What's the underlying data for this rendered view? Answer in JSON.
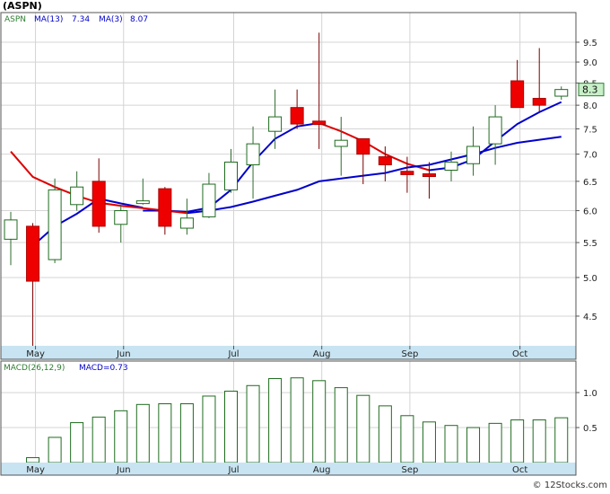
{
  "chart_data": [
    {
      "type": "candlestick",
      "title": "(ASPN)",
      "legend": [
        {
          "label": "ASPN",
          "color": "#2e7d32"
        },
        {
          "label": "MA(13)",
          "value": "7.34",
          "color": "#0000cc"
        },
        {
          "label": "MA(3)",
          "value": "8.07",
          "color": "#0000cc"
        }
      ],
      "scale": "log",
      "ylim": [
        4.15,
        10.3
      ],
      "yticks": [
        "9.5",
        "9.0",
        "8.5",
        "8.0",
        "7.5",
        "7.0",
        "6.5",
        "6.0",
        "5.5",
        "5.0",
        "4.5"
      ],
      "xticks": [
        {
          "label": "May",
          "index": 1
        },
        {
          "label": "Jun",
          "index": 5
        },
        {
          "label": "Jul",
          "index": 10
        },
        {
          "label": "Aug",
          "index": 14
        },
        {
          "label": "Sep",
          "index": 18
        },
        {
          "label": "Oct",
          "index": 23
        }
      ],
      "last_price_label": "8.3",
      "candles": [
        {
          "o": 5.55,
          "h": 5.98,
          "l": 5.17,
          "c": 5.85
        },
        {
          "o": 5.75,
          "h": 5.8,
          "l": 4.15,
          "c": 4.95
        },
        {
          "o": 5.25,
          "h": 6.55,
          "l": 5.2,
          "c": 6.35
        },
        {
          "o": 6.1,
          "h": 6.68,
          "l": 6.0,
          "c": 6.4
        },
        {
          "o": 6.5,
          "h": 6.92,
          "l": 5.65,
          "c": 5.75
        },
        {
          "o": 5.78,
          "h": 6.08,
          "l": 5.5,
          "c": 6.0
        },
        {
          "o": 6.13,
          "h": 6.55,
          "l": 6.1,
          "c": 6.15
        },
        {
          "o": 6.37,
          "h": 6.4,
          "l": 5.62,
          "c": 5.75
        },
        {
          "o": 5.72,
          "h": 6.2,
          "l": 5.62,
          "c": 5.88
        },
        {
          "o": 5.9,
          "h": 6.65,
          "l": 5.88,
          "c": 6.45
        },
        {
          "o": 6.35,
          "h": 7.1,
          "l": 6.3,
          "c": 6.85
        },
        {
          "o": 6.8,
          "h": 7.55,
          "l": 6.2,
          "c": 7.2
        },
        {
          "o": 7.45,
          "h": 8.35,
          "l": 7.1,
          "c": 7.75
        },
        {
          "o": 7.95,
          "h": 8.35,
          "l": 7.5,
          "c": 7.6
        },
        {
          "o": 7.66,
          "h": 9.75,
          "l": 7.1,
          "c": 7.59
        },
        {
          "o": 7.15,
          "h": 7.75,
          "l": 6.6,
          "c": 7.27
        },
        {
          "o": 7.3,
          "h": 7.3,
          "l": 6.45,
          "c": 7.0
        },
        {
          "o": 6.95,
          "h": 7.15,
          "l": 6.5,
          "c": 6.8
        },
        {
          "o": 6.68,
          "h": 6.95,
          "l": 6.3,
          "c": 6.62
        },
        {
          "o": 6.62,
          "h": 6.85,
          "l": 6.2,
          "c": 6.6
        },
        {
          "o": 6.7,
          "h": 7.05,
          "l": 6.5,
          "c": 6.85
        },
        {
          "o": 6.82,
          "h": 7.55,
          "l": 6.6,
          "c": 7.15
        },
        {
          "o": 7.2,
          "h": 8.0,
          "l": 6.8,
          "c": 7.75
        },
        {
          "o": 8.55,
          "h": 9.05,
          "l": 7.95,
          "c": 7.95
        },
        {
          "o": 8.15,
          "h": 9.35,
          "l": 7.85,
          "c": 8.0
        },
        {
          "o": 8.2,
          "h": 8.42,
          "l": 8.12,
          "c": 8.35
        }
      ],
      "series": [
        {
          "name": "MA(3)",
          "segments": [
            {
              "color": "#0000cc",
              "values": [
                null,
                5.45,
                5.75,
                5.95,
                6.2,
                6.12,
                6.05,
                null,
                null,
                null,
                null,
                null,
                null,
                null,
                null,
                null,
                null,
                null,
                null,
                null,
                null,
                null,
                null,
                null,
                null,
                null
              ]
            },
            {
              "color": "#0000cc",
              "values": [
                null,
                null,
                null,
                null,
                null,
                null,
                6.0,
                6.0,
                5.98,
                6.05,
                6.35,
                6.85,
                7.3,
                7.55,
                7.62,
                null,
                null,
                null,
                null,
                null,
                null,
                null,
                null,
                null,
                null,
                null
              ]
            },
            {
              "color": "#dd0000",
              "values": [
                null,
                null,
                null,
                null,
                null,
                null,
                null,
                null,
                null,
                null,
                null,
                null,
                null,
                null,
                7.62,
                7.45,
                7.25,
                7.0,
                6.82,
                6.7,
                null,
                null,
                null,
                null,
                null,
                null
              ]
            },
            {
              "color": "#0000cc",
              "values": [
                null,
                null,
                null,
                null,
                null,
                null,
                null,
                null,
                null,
                null,
                null,
                null,
                null,
                null,
                null,
                null,
                null,
                null,
                null,
                6.7,
                6.75,
                6.9,
                7.25,
                7.6,
                7.85,
                8.07
              ]
            }
          ]
        },
        {
          "name": "MA(13)",
          "segments": [
            {
              "color": "#dd0000",
              "values": [
                7.05,
                6.58,
                6.4,
                6.25,
                6.13,
                6.08,
                6.04,
                6.0,
                5.96,
                null,
                null,
                null,
                null,
                null,
                null,
                null,
                null,
                null,
                null,
                null,
                null,
                null,
                null,
                null,
                null,
                null
              ]
            },
            {
              "color": "#0000cc",
              "values": [
                null,
                null,
                null,
                null,
                null,
                null,
                null,
                null,
                5.96,
                6.0,
                6.06,
                6.15,
                6.25,
                6.35,
                6.5,
                6.55,
                6.6,
                6.65,
                6.75,
                6.8,
                6.9,
                7.0,
                7.12,
                7.22,
                7.28,
                7.34
              ]
            }
          ]
        }
      ]
    },
    {
      "type": "bar",
      "title": "MACD(26,12,9)",
      "legend": [
        {
          "label": "MACD(26,12,9)",
          "color": "#2e7d32"
        },
        {
          "label": "MACD=0.73",
          "color": "#0000cc"
        }
      ],
      "ylim": [
        0.0,
        1.45
      ],
      "yticks": [
        "1.0",
        "0.5"
      ],
      "xticks": [
        "May",
        "Jun",
        "Jul",
        "Aug",
        "Sep",
        "Oct"
      ],
      "values": [
        0.0,
        0.07,
        0.36,
        0.57,
        0.65,
        0.74,
        0.83,
        0.84,
        0.84,
        0.95,
        1.02,
        1.1,
        1.2,
        1.21,
        1.17,
        1.07,
        0.96,
        0.81,
        0.67,
        0.58,
        0.53,
        0.5,
        0.56,
        0.61,
        0.61,
        0.64
      ]
    }
  ],
  "watermark": "© 12Stocks.com",
  "colors": {
    "up_fill": "#ffffff",
    "up_stroke": "#1f6b1f",
    "down_fill": "#ee0000",
    "down_stroke": "#aa0000",
    "wick": "#7a0000",
    "grid": "#d4d4d4",
    "frame": "#555555",
    "axis_bg": "#c8e4f2"
  }
}
